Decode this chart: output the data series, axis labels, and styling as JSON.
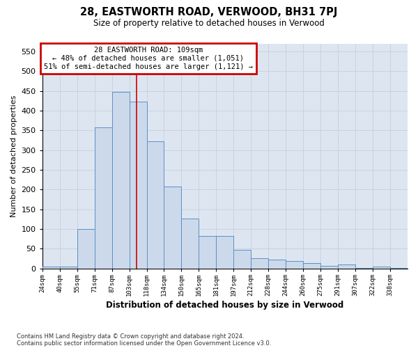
{
  "title": "28, EASTWORTH ROAD, VERWOOD, BH31 7PJ",
  "subtitle": "Size of property relative to detached houses in Verwood",
  "xlabel": "Distribution of detached houses by size in Verwood",
  "ylabel": "Number of detached properties",
  "bar_labels": [
    "24sqm",
    "40sqm",
    "55sqm",
    "71sqm",
    "87sqm",
    "103sqm",
    "118sqm",
    "134sqm",
    "150sqm",
    "165sqm",
    "181sqm",
    "197sqm",
    "212sqm",
    "228sqm",
    "244sqm",
    "260sqm",
    "275sqm",
    "291sqm",
    "307sqm",
    "322sqm",
    "338sqm"
  ],
  "bar_values": [
    5,
    5,
    100,
    357,
    447,
    423,
    322,
    207,
    127,
    83,
    83,
    48,
    27,
    22,
    20,
    13,
    7,
    10,
    2,
    5,
    2
  ],
  "bar_color": "#ccd9ea",
  "bar_edge_color": "#5b8fc9",
  "ylim": [
    0,
    570
  ],
  "yticks": [
    0,
    50,
    100,
    150,
    200,
    250,
    300,
    350,
    400,
    450,
    500,
    550
  ],
  "property_line_x": 5.4,
  "annotation_text": "28 EASTWORTH ROAD: 109sqm\n← 48% of detached houses are smaller (1,051)\n51% of semi-detached houses are larger (1,121) →",
  "annotation_box_color": "#ffffff",
  "annotation_border_color": "#cc0000",
  "footer_line1": "Contains HM Land Registry data © Crown copyright and database right 2024.",
  "footer_line2": "Contains public sector information licensed under the Open Government Licence v3.0.",
  "background_color": "#ffffff",
  "grid_color": "#c5cfe0",
  "red_line_color": "#cc0000",
  "axes_bg_color": "#dde6f0"
}
